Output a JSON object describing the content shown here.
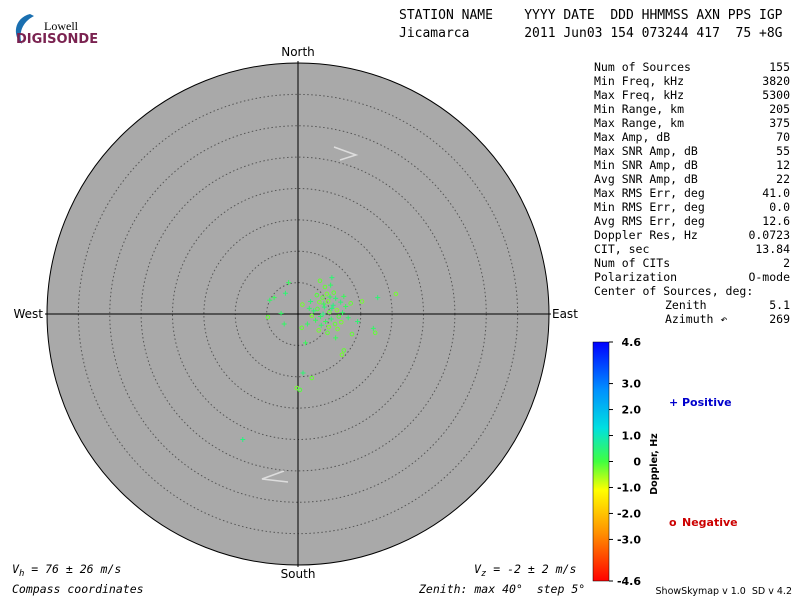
{
  "logo": {
    "top": "Lowell",
    "bottom": "DIGISONDE"
  },
  "header": {
    "line1": "STATION NAME    YYYY DATE  DDD HHMMSS AXN PPS IGP",
    "line2": "Jicamarca       2011 Jun03 154 073244 417  75 +8G"
  },
  "stats": [
    [
      "Num of Sources",
      "155"
    ],
    [
      "Min Freq, kHz",
      "3820"
    ],
    [
      "Max Freq, kHz",
      "5300"
    ],
    [
      "Min Range, km",
      "205"
    ],
    [
      "Max Range, km",
      "375"
    ],
    [
      "Max Amp, dB",
      "70"
    ],
    [
      "Max SNR Amp, dB",
      "55"
    ],
    [
      "Min SNR Amp, dB",
      "12"
    ],
    [
      "Avg SNR Amp, dB",
      "22"
    ],
    [
      "Max RMS Err, deg",
      "41.0"
    ],
    [
      "Min RMS Err, deg",
      "0.0"
    ],
    [
      "Avg RMS Err, deg",
      "12.6"
    ],
    [
      "Doppler Res, Hz",
      "0.0723"
    ],
    [
      "CIT, sec",
      "13.84"
    ],
    [
      "Num of CITs",
      "2"
    ],
    [
      "Polarization",
      "O-mode"
    ]
  ],
  "center": {
    "title": "Center of Sources, deg:",
    "rows": [
      [
        "Zenith",
        "5.1"
      ],
      [
        "Azimuth ↶",
        "269"
      ]
    ]
  },
  "skymap": {
    "directions": {
      "north": "North",
      "south": "South",
      "east": "East",
      "west": "West"
    },
    "zenith_max": 40,
    "zenith_step": 5,
    "points": [
      [
        4.2,
        1.1,
        0.4
      ],
      [
        5.0,
        0.3,
        -0.2
      ],
      [
        3.6,
        -0.4,
        0.3
      ],
      [
        4.8,
        2.0,
        -0.3
      ],
      [
        5.6,
        1.4,
        0.5
      ],
      [
        3.1,
        0.8,
        -0.1
      ],
      [
        4.4,
        -1.2,
        0.2
      ],
      [
        6.2,
        0.6,
        -0.4
      ],
      [
        5.3,
        -0.8,
        0.3
      ],
      [
        3.9,
        2.6,
        -0.2
      ],
      [
        6.8,
        1.9,
        0.4
      ],
      [
        4.6,
        3.2,
        -0.3
      ],
      [
        2.8,
        -1.0,
        0.2
      ],
      [
        5.9,
        -1.6,
        -0.2
      ],
      [
        7.1,
        0.2,
        0.3
      ],
      [
        3.4,
        1.9,
        -0.3
      ],
      [
        4.0,
        0.0,
        0.5
      ],
      [
        5.1,
        2.7,
        0.2
      ],
      [
        6.5,
        -0.4,
        -0.1
      ],
      [
        2.5,
        0.5,
        0.4
      ],
      [
        4.9,
        -2.1,
        -0.3
      ],
      [
        3.7,
        -1.8,
        0.3
      ],
      [
        5.7,
        3.4,
        -0.2
      ],
      [
        7.6,
        1.2,
        0.2
      ],
      [
        2.2,
        -0.3,
        -0.3
      ],
      [
        6.0,
        2.5,
        0.4
      ],
      [
        4.3,
        4.3,
        -0.2
      ],
      [
        8.0,
        -0.6,
        0.3
      ],
      [
        3.0,
        3.0,
        -0.1
      ],
      [
        5.4,
        0.9,
        0.5
      ],
      [
        6.3,
        -2.4,
        -0.3
      ],
      [
        1.8,
        0.9,
        0.3
      ],
      [
        4.7,
        -3.0,
        -0.2
      ],
      [
        7.3,
        2.8,
        0.2
      ],
      [
        3.3,
        -2.6,
        -0.3
      ],
      [
        5.2,
        4.6,
        0.3
      ],
      [
        8.4,
        1.7,
        -0.2
      ],
      [
        2.0,
        2.0,
        0.4
      ],
      [
        6.9,
        -1.3,
        -0.3
      ],
      [
        4.1,
        1.6,
        0.2
      ],
      [
        12.3,
        -3.0,
        -0.2
      ],
      [
        12.0,
        -2.3,
        0.3
      ],
      [
        15.6,
        3.2,
        -0.3
      ],
      [
        12.7,
        2.6,
        0.4
      ],
      [
        -4.5,
        2.2,
        0.3
      ],
      [
        -2.0,
        3.3,
        0.4
      ],
      [
        -4.8,
        -0.5,
        -0.2
      ],
      [
        -2.7,
        0.1,
        0.3
      ],
      [
        7.0,
        -6.5,
        -0.3
      ],
      [
        6.0,
        -3.8,
        0.2
      ],
      [
        7.3,
        -5.8,
        -0.2
      ],
      [
        -0.2,
        -11.8,
        -0.3
      ],
      [
        0.8,
        -9.4,
        0.4
      ],
      [
        2.2,
        -10.2,
        -0.2
      ],
      [
        0.3,
        -12.1,
        -0.1
      ],
      [
        -8.8,
        -20.0,
        0.5
      ],
      [
        -2.2,
        -1.6,
        0.3
      ],
      [
        1.2,
        -4.6,
        0.2
      ],
      [
        0.6,
        -2.2,
        -0.2
      ],
      [
        9.5,
        -1.2,
        0.4
      ],
      [
        8.6,
        -3.2,
        -0.2
      ],
      [
        -1.5,
        5.0,
        0.2
      ],
      [
        3.5,
        5.3,
        -0.2
      ],
      [
        5.4,
        5.8,
        0.4
      ],
      [
        10.2,
        2.0,
        -0.3
      ],
      [
        -3.8,
        2.6,
        0.2
      ],
      [
        0.7,
        1.5,
        -0.3
      ],
      [
        1.5,
        -1.6,
        0.3
      ]
    ]
  },
  "colorbar": {
    "title": "Doppler, Hz",
    "range": [
      -4.6,
      4.6
    ],
    "ticks": [
      4.6,
      {
        "value": 3,
        "label": "3.0"
      },
      {
        "value": 2,
        "label": "2.0"
      },
      {
        "value": 1,
        "label": "1.0"
      },
      0,
      {
        "value": -1,
        "label": "-1.0"
      },
      {
        "value": -2,
        "label": "-2.0"
      },
      {
        "value": -3,
        "label": "-3.0"
      },
      -4.6
    ]
  },
  "legend": {
    "positive": {
      "symbol": "+",
      "label": "Positive"
    },
    "negative": {
      "symbol": "o",
      "label": "Negative"
    }
  },
  "velocity": {
    "h": {
      "symbol": "V",
      "sub": "h",
      "text": " = 76 ± 26 m/s"
    },
    "z": {
      "symbol": "V",
      "sub": "z",
      "text": " = -2 ± 2 m/s"
    }
  },
  "footer": {
    "left": "Compass coordinates",
    "middle": "Zenith: max 40°  step 5°",
    "right": "ShowSkymap v 1.0  SD v 4.2"
  }
}
